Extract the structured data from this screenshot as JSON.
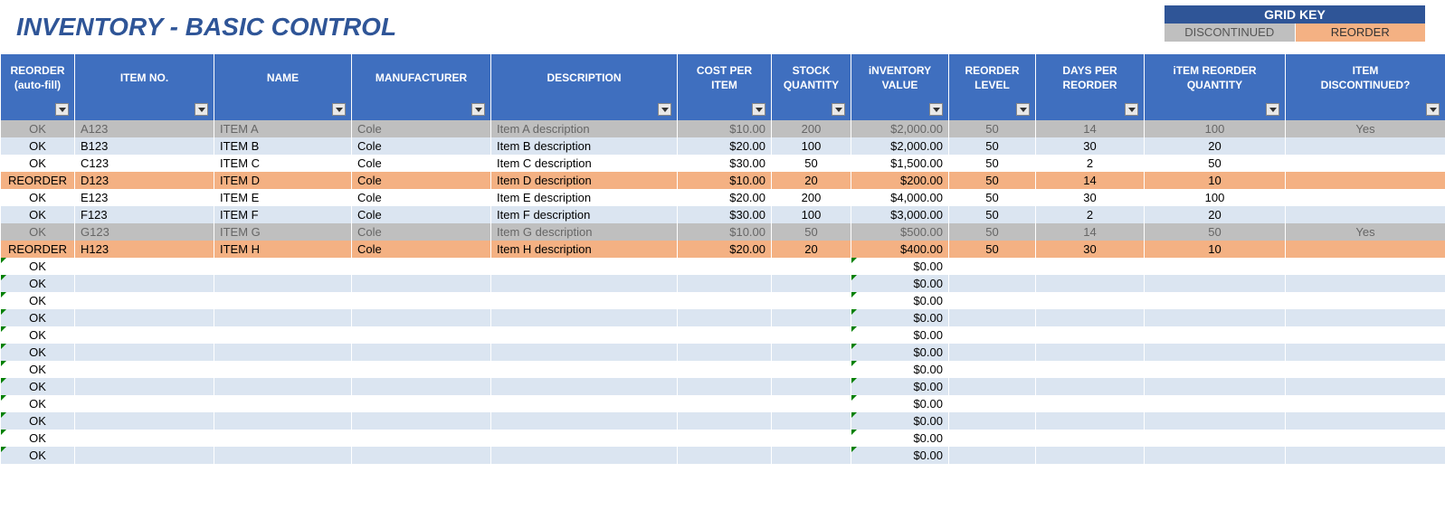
{
  "title": "INVENTORY - BASIC CONTROL",
  "gridKey": {
    "header": "GRID KEY",
    "discontinued": "DISCONTINUED",
    "reorder": "REORDER"
  },
  "colors": {
    "title": "#2f5597",
    "header_bg": "#3f6fbf",
    "row_even": "#dbe5f1",
    "row_odd": "#ffffff",
    "discontinued": "#bfbfbf",
    "reorder": "#f4b183",
    "grid_key_header": "#2f5597"
  },
  "columns": [
    {
      "label": "REORDER (auto-fill)",
      "class": "col-reorder"
    },
    {
      "label": "ITEM NO.",
      "class": "col-itemno"
    },
    {
      "label": "NAME",
      "class": "col-name"
    },
    {
      "label": "MANUFACTURER",
      "class": "col-mfr"
    },
    {
      "label": "DESCRIPTION",
      "class": "col-desc"
    },
    {
      "label": "COST PER ITEM",
      "class": "col-cost"
    },
    {
      "label": "STOCK QUANTITY",
      "class": "col-stockqty"
    },
    {
      "label": "iNVENTORY VALUE",
      "class": "col-invval"
    },
    {
      "label": "REORDER LEVEL",
      "class": "col-relevel"
    },
    {
      "label": "DAYS PER REORDER",
      "class": "col-daysper"
    },
    {
      "label": "iTEM REORDER QUANTITY",
      "class": "col-reqty"
    },
    {
      "label": "ITEM DISCONTINUED?",
      "class": "col-disc"
    }
  ],
  "rows": [
    {
      "status": "discontinued",
      "reorder": "OK",
      "itemNo": "A123",
      "name": "ITEM A",
      "mfr": "Cole",
      "desc": "Item A description",
      "cost": "$10.00",
      "stock": "200",
      "inv": "$2,000.00",
      "relevel": "50",
      "days": "14",
      "reqty": "100",
      "disc": "Yes"
    },
    {
      "status": "even",
      "reorder": "OK",
      "itemNo": "B123",
      "name": "ITEM B",
      "mfr": "Cole",
      "desc": "Item B description",
      "cost": "$20.00",
      "stock": "100",
      "inv": "$2,000.00",
      "relevel": "50",
      "days": "30",
      "reqty": "20",
      "disc": ""
    },
    {
      "status": "odd",
      "reorder": "OK",
      "itemNo": "C123",
      "name": "ITEM C",
      "mfr": "Cole",
      "desc": "Item C description",
      "cost": "$30.00",
      "stock": "50",
      "inv": "$1,500.00",
      "relevel": "50",
      "days": "2",
      "reqty": "50",
      "disc": ""
    },
    {
      "status": "reorder",
      "reorder": "REORDER",
      "itemNo": "D123",
      "name": "ITEM D",
      "mfr": "Cole",
      "desc": "Item D description",
      "cost": "$10.00",
      "stock": "20",
      "inv": "$200.00",
      "relevel": "50",
      "days": "14",
      "reqty": "10",
      "disc": ""
    },
    {
      "status": "odd",
      "reorder": "OK",
      "itemNo": "E123",
      "name": "ITEM E",
      "mfr": "Cole",
      "desc": "Item E description",
      "cost": "$20.00",
      "stock": "200",
      "inv": "$4,000.00",
      "relevel": "50",
      "days": "30",
      "reqty": "100",
      "disc": ""
    },
    {
      "status": "even",
      "reorder": "OK",
      "itemNo": "F123",
      "name": "ITEM F",
      "mfr": "Cole",
      "desc": "Item F description",
      "cost": "$30.00",
      "stock": "100",
      "inv": "$3,000.00",
      "relevel": "50",
      "days": "2",
      "reqty": "20",
      "disc": ""
    },
    {
      "status": "discontinued",
      "reorder": "OK",
      "itemNo": "G123",
      "name": "ITEM G",
      "mfr": "Cole",
      "desc": "Item G description",
      "cost": "$10.00",
      "stock": "50",
      "inv": "$500.00",
      "relevel": "50",
      "days": "14",
      "reqty": "50",
      "disc": "Yes"
    },
    {
      "status": "reorder",
      "reorder": "REORDER",
      "itemNo": "H123",
      "name": "ITEM H",
      "mfr": "Cole",
      "desc": "Item H description",
      "cost": "$20.00",
      "stock": "20",
      "inv": "$400.00",
      "relevel": "50",
      "days": "30",
      "reqty": "10",
      "disc": ""
    },
    {
      "status": "odd",
      "reorder": "OK",
      "itemNo": "",
      "name": "",
      "mfr": "",
      "desc": "",
      "cost": "",
      "stock": "",
      "inv": "$0.00",
      "relevel": "",
      "days": "",
      "reqty": "",
      "disc": "",
      "empty": true
    },
    {
      "status": "even",
      "reorder": "OK",
      "itemNo": "",
      "name": "",
      "mfr": "",
      "desc": "",
      "cost": "",
      "stock": "",
      "inv": "$0.00",
      "relevel": "",
      "days": "",
      "reqty": "",
      "disc": "",
      "empty": true
    },
    {
      "status": "odd",
      "reorder": "OK",
      "itemNo": "",
      "name": "",
      "mfr": "",
      "desc": "",
      "cost": "",
      "stock": "",
      "inv": "$0.00",
      "relevel": "",
      "days": "",
      "reqty": "",
      "disc": "",
      "empty": true
    },
    {
      "status": "even",
      "reorder": "OK",
      "itemNo": "",
      "name": "",
      "mfr": "",
      "desc": "",
      "cost": "",
      "stock": "",
      "inv": "$0.00",
      "relevel": "",
      "days": "",
      "reqty": "",
      "disc": "",
      "empty": true
    },
    {
      "status": "odd",
      "reorder": "OK",
      "itemNo": "",
      "name": "",
      "mfr": "",
      "desc": "",
      "cost": "",
      "stock": "",
      "inv": "$0.00",
      "relevel": "",
      "days": "",
      "reqty": "",
      "disc": "",
      "empty": true
    },
    {
      "status": "even",
      "reorder": "OK",
      "itemNo": "",
      "name": "",
      "mfr": "",
      "desc": "",
      "cost": "",
      "stock": "",
      "inv": "$0.00",
      "relevel": "",
      "days": "",
      "reqty": "",
      "disc": "",
      "empty": true
    },
    {
      "status": "odd",
      "reorder": "OK",
      "itemNo": "",
      "name": "",
      "mfr": "",
      "desc": "",
      "cost": "",
      "stock": "",
      "inv": "$0.00",
      "relevel": "",
      "days": "",
      "reqty": "",
      "disc": "",
      "empty": true
    },
    {
      "status": "even",
      "reorder": "OK",
      "itemNo": "",
      "name": "",
      "mfr": "",
      "desc": "",
      "cost": "",
      "stock": "",
      "inv": "$0.00",
      "relevel": "",
      "days": "",
      "reqty": "",
      "disc": "",
      "empty": true
    },
    {
      "status": "odd",
      "reorder": "OK",
      "itemNo": "",
      "name": "",
      "mfr": "",
      "desc": "",
      "cost": "",
      "stock": "",
      "inv": "$0.00",
      "relevel": "",
      "days": "",
      "reqty": "",
      "disc": "",
      "empty": true
    },
    {
      "status": "even",
      "reorder": "OK",
      "itemNo": "",
      "name": "",
      "mfr": "",
      "desc": "",
      "cost": "",
      "stock": "",
      "inv": "$0.00",
      "relevel": "",
      "days": "",
      "reqty": "",
      "disc": "",
      "empty": true
    },
    {
      "status": "odd",
      "reorder": "OK",
      "itemNo": "",
      "name": "",
      "mfr": "",
      "desc": "",
      "cost": "",
      "stock": "",
      "inv": "$0.00",
      "relevel": "",
      "days": "",
      "reqty": "",
      "disc": "",
      "empty": true
    },
    {
      "status": "even",
      "reorder": "OK",
      "itemNo": "",
      "name": "",
      "mfr": "",
      "desc": "",
      "cost": "",
      "stock": "",
      "inv": "$0.00",
      "relevel": "",
      "days": "",
      "reqty": "",
      "disc": "",
      "empty": true
    }
  ]
}
